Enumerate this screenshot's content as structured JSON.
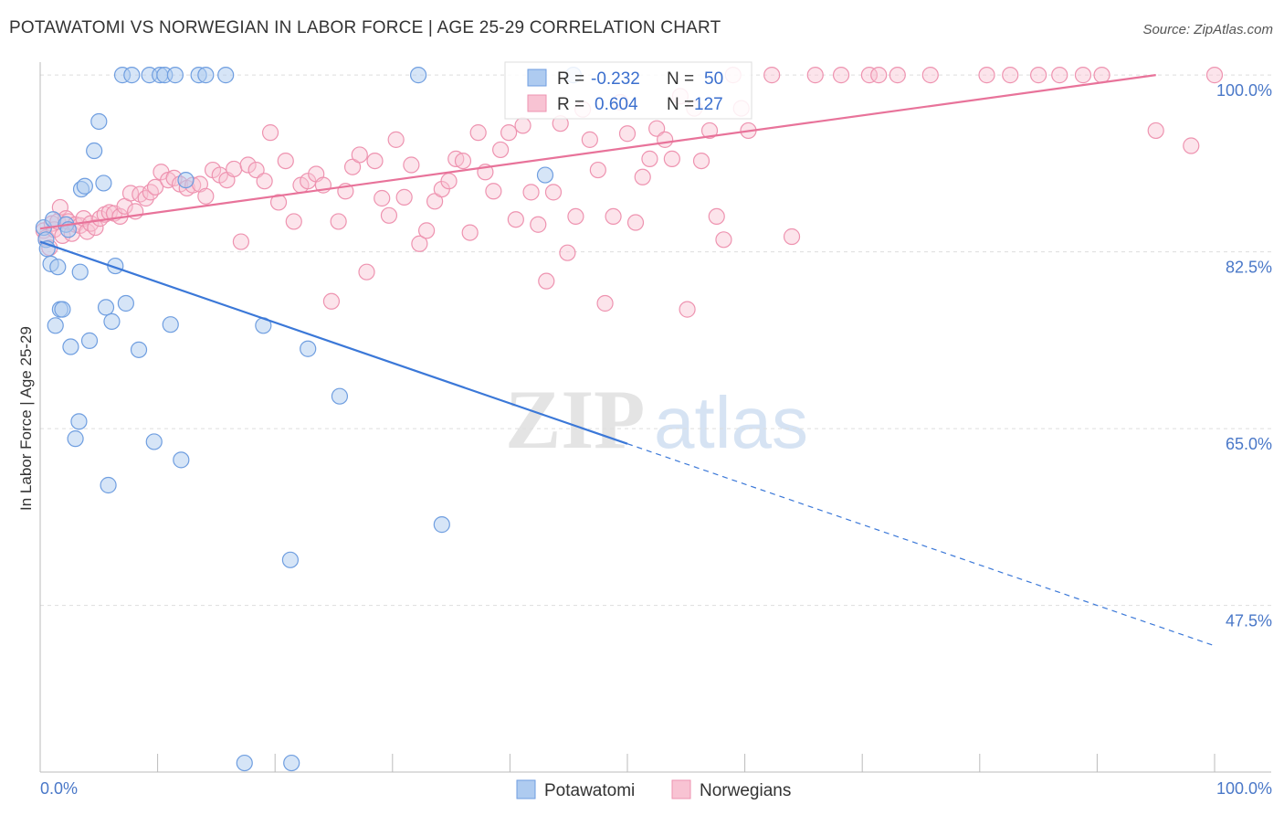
{
  "title": "POTAWATOMI VS NORWEGIAN IN LABOR FORCE | AGE 25-29 CORRELATION CHART",
  "source": "Source: ZipAtlas.com",
  "watermark": {
    "zip": "ZIP",
    "atlas": "atlas"
  },
  "colors": {
    "blue_fill": "#aecbf0",
    "blue_stroke": "#6f9ee0",
    "blue_line": "#3b78d8",
    "pink_fill": "#f8c3d3",
    "pink_stroke": "#ee93b0",
    "pink_line": "#e8739a",
    "grid": "#dddddd",
    "tick_text": "#4a78c8"
  },
  "legend": {
    "rows": [
      {
        "r_label": "R =",
        "r_value": "-0.232",
        "n_label": "N =",
        "n_value": "50"
      },
      {
        "r_label": "R =",
        "r_value": "0.604",
        "n_label": "N =",
        "n_value": "127"
      }
    ]
  },
  "chart_data": {
    "type": "scatter",
    "xlabel": "",
    "ylabel": "In Labor Force | Age 25-29",
    "xlim": [
      0,
      100
    ],
    "ylim": [
      31,
      102
    ],
    "x_tick_labels": [
      "0.0%",
      "100.0%"
    ],
    "y_ticks": [
      47.5,
      65.0,
      82.5,
      100.0
    ],
    "y_tick_labels": [
      "47.5%",
      "65.0%",
      "82.5%",
      "100.0%"
    ],
    "grid": true,
    "legend_position": "bottom-center",
    "series": [
      {
        "name": "Potawatomi",
        "color": "#6f9ee0",
        "trend": {
          "x0": 0,
          "y0": 83.5,
          "x1": 100,
          "y1": 43.5,
          "solid_until": 50
        },
        "points": [
          [
            0.3,
            84.9
          ],
          [
            0.5,
            83.7
          ],
          [
            0.6,
            82.8
          ],
          [
            0.9,
            81.3
          ],
          [
            1.1,
            85.7
          ],
          [
            1.3,
            75.2
          ],
          [
            1.5,
            81.0
          ],
          [
            1.7,
            76.8
          ],
          [
            1.9,
            76.8
          ],
          [
            2.2,
            85.2
          ],
          [
            2.4,
            84.7
          ],
          [
            2.6,
            73.1
          ],
          [
            3.0,
            64.0
          ],
          [
            3.3,
            65.7
          ],
          [
            3.4,
            80.5
          ],
          [
            3.5,
            88.7
          ],
          [
            3.8,
            89.0
          ],
          [
            4.2,
            73.7
          ],
          [
            4.6,
            92.5
          ],
          [
            5.0,
            95.4
          ],
          [
            5.4,
            89.3
          ],
          [
            5.6,
            77.0
          ],
          [
            5.8,
            59.4
          ],
          [
            6.1,
            75.6
          ],
          [
            6.4,
            81.1
          ],
          [
            7.0,
            100
          ],
          [
            7.3,
            77.4
          ],
          [
            7.8,
            100
          ],
          [
            8.4,
            72.8
          ],
          [
            9.3,
            100
          ],
          [
            9.7,
            63.7
          ],
          [
            10.2,
            100
          ],
          [
            10.6,
            100
          ],
          [
            11.1,
            75.3
          ],
          [
            11.5,
            100
          ],
          [
            12.0,
            61.9
          ],
          [
            12.4,
            89.6
          ],
          [
            13.5,
            100
          ],
          [
            14.1,
            100
          ],
          [
            15.8,
            100
          ],
          [
            17.4,
            31.9
          ],
          [
            19.0,
            75.2
          ],
          [
            21.3,
            52.0
          ],
          [
            21.4,
            31.9
          ],
          [
            22.8,
            72.9
          ],
          [
            25.5,
            68.2
          ],
          [
            32.2,
            100
          ],
          [
            34.2,
            55.5
          ],
          [
            43.0,
            90.1
          ],
          [
            45.4,
            100
          ]
        ]
      },
      {
        "name": "Norwegians",
        "color": "#ee93b0",
        "trend": {
          "x0": 0,
          "y0": 84.8,
          "x1": 95,
          "y1": 100
        },
        "points": [
          [
            0.3,
            84.6
          ],
          [
            0.5,
            83.9
          ],
          [
            0.8,
            82.9
          ],
          [
            1.0,
            85.3
          ],
          [
            1.2,
            84.7
          ],
          [
            1.5,
            85.5
          ],
          [
            1.7,
            86.9
          ],
          [
            1.9,
            84.1
          ],
          [
            2.2,
            85.8
          ],
          [
            2.4,
            85.5
          ],
          [
            2.7,
            84.3
          ],
          [
            3.0,
            85.2
          ],
          [
            3.4,
            85.1
          ],
          [
            3.7,
            85.8
          ],
          [
            4.0,
            84.5
          ],
          [
            4.3,
            85.3
          ],
          [
            4.7,
            84.9
          ],
          [
            5.1,
            85.8
          ],
          [
            5.5,
            86.2
          ],
          [
            5.9,
            86.4
          ],
          [
            6.3,
            86.3
          ],
          [
            6.8,
            86.0
          ],
          [
            7.2,
            87.0
          ],
          [
            7.7,
            88.3
          ],
          [
            8.1,
            86.5
          ],
          [
            8.5,
            88.2
          ],
          [
            9.0,
            87.8
          ],
          [
            9.4,
            88.4
          ],
          [
            9.8,
            88.9
          ],
          [
            10.3,
            90.4
          ],
          [
            10.9,
            89.6
          ],
          [
            11.4,
            89.8
          ],
          [
            11.9,
            89.2
          ],
          [
            12.5,
            88.8
          ],
          [
            13.0,
            89.1
          ],
          [
            13.6,
            89.2
          ],
          [
            14.1,
            88.0
          ],
          [
            14.7,
            90.6
          ],
          [
            15.3,
            90.1
          ],
          [
            15.9,
            89.6
          ],
          [
            16.5,
            90.7
          ],
          [
            17.1,
            83.5
          ],
          [
            17.7,
            91.1
          ],
          [
            18.4,
            90.6
          ],
          [
            19.1,
            89.5
          ],
          [
            19.6,
            94.3
          ],
          [
            20.3,
            87.4
          ],
          [
            20.9,
            91.5
          ],
          [
            21.6,
            85.5
          ],
          [
            22.2,
            89.1
          ],
          [
            22.8,
            89.5
          ],
          [
            23.5,
            90.2
          ],
          [
            24.1,
            89.1
          ],
          [
            24.8,
            77.6
          ],
          [
            25.4,
            85.5
          ],
          [
            26.0,
            88.5
          ],
          [
            26.6,
            90.9
          ],
          [
            27.2,
            92.1
          ],
          [
            27.8,
            80.5
          ],
          [
            28.5,
            91.5
          ],
          [
            29.1,
            87.8
          ],
          [
            29.7,
            86.1
          ],
          [
            30.3,
            93.6
          ],
          [
            31.0,
            87.9
          ],
          [
            31.6,
            91.1
          ],
          [
            32.3,
            83.3
          ],
          [
            32.9,
            84.6
          ],
          [
            33.6,
            87.5
          ],
          [
            34.2,
            88.7
          ],
          [
            34.8,
            89.5
          ],
          [
            35.4,
            91.7
          ],
          [
            36.0,
            91.5
          ],
          [
            36.6,
            84.4
          ],
          [
            37.3,
            94.3
          ],
          [
            37.9,
            90.4
          ],
          [
            38.6,
            88.5
          ],
          [
            39.2,
            92.6
          ],
          [
            39.9,
            94.3
          ],
          [
            40.5,
            85.7
          ],
          [
            41.1,
            95.0
          ],
          [
            41.8,
            88.4
          ],
          [
            42.4,
            85.2
          ],
          [
            43.1,
            79.6
          ],
          [
            43.7,
            88.4
          ],
          [
            44.3,
            95.2
          ],
          [
            44.9,
            82.4
          ],
          [
            45.6,
            86.0
          ],
          [
            46.2,
            96.6
          ],
          [
            46.8,
            93.6
          ],
          [
            47.5,
            90.6
          ],
          [
            48.1,
            77.4
          ],
          [
            48.8,
            86.0
          ],
          [
            49.4,
            97.3
          ],
          [
            50.0,
            94.2
          ],
          [
            50.7,
            85.4
          ],
          [
            51.3,
            89.9
          ],
          [
            51.9,
            91.7
          ],
          [
            52.5,
            94.7
          ],
          [
            53.2,
            93.6
          ],
          [
            53.8,
            91.7
          ],
          [
            54.5,
            97.9
          ],
          [
            55.1,
            76.8
          ],
          [
            55.7,
            96.7
          ],
          [
            56.3,
            91.5
          ],
          [
            57.0,
            94.5
          ],
          [
            57.6,
            86.0
          ],
          [
            58.2,
            83.7
          ],
          [
            59.0,
            100
          ],
          [
            59.7,
            96.7
          ],
          [
            60.3,
            94.5
          ],
          [
            62.3,
            100
          ],
          [
            64.0,
            84.0
          ],
          [
            66.0,
            100
          ],
          [
            68.2,
            100
          ],
          [
            70.6,
            100
          ],
          [
            71.4,
            100
          ],
          [
            73.0,
            100
          ],
          [
            75.8,
            100
          ],
          [
            80.6,
            100
          ],
          [
            82.6,
            100
          ],
          [
            85.0,
            100
          ],
          [
            86.8,
            100
          ],
          [
            88.8,
            100
          ],
          [
            90.4,
            100
          ],
          [
            95.0,
            94.5
          ],
          [
            98.0,
            93.0
          ],
          [
            100.0,
            100
          ]
        ]
      }
    ]
  }
}
